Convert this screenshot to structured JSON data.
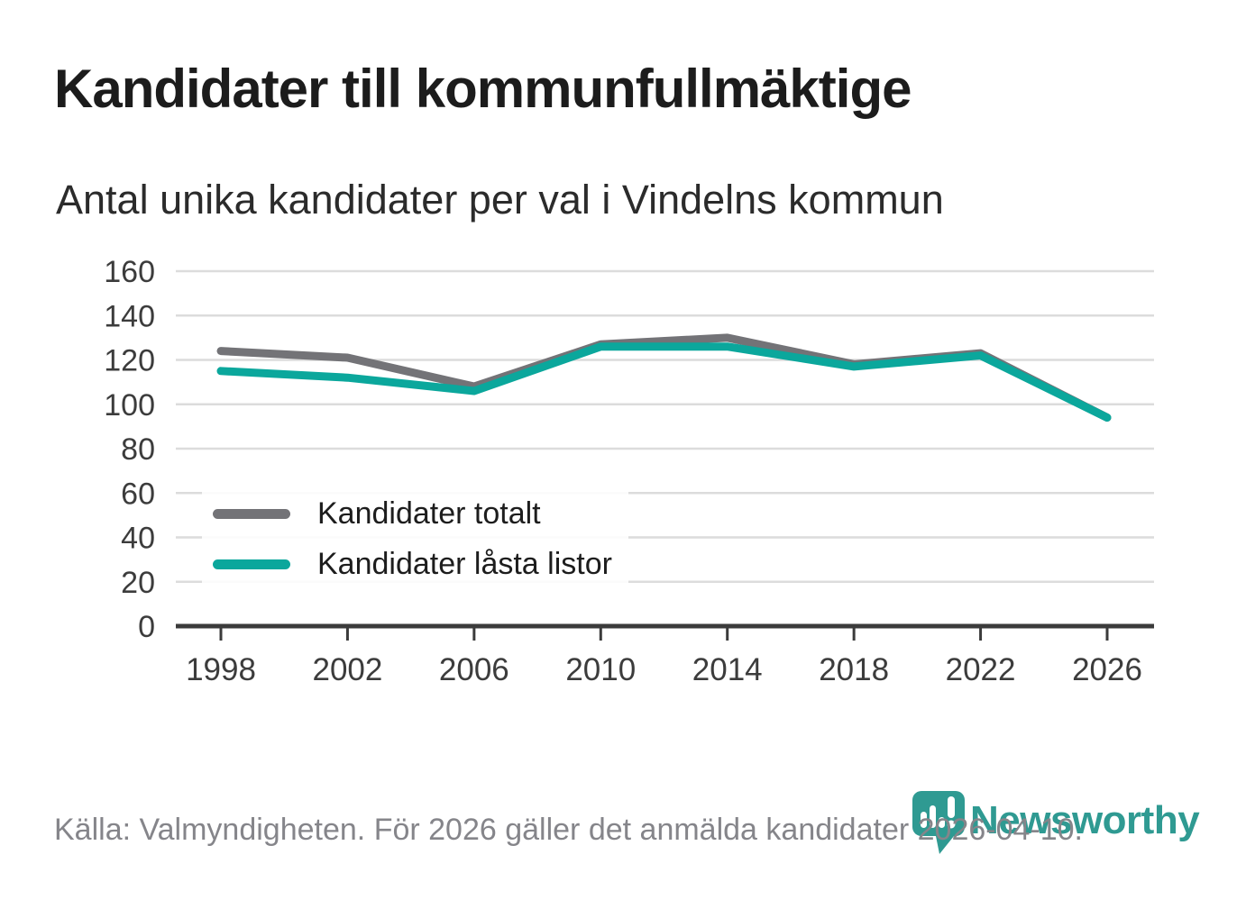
{
  "header": {
    "title": "Kandidater till kommunfullmäktige",
    "subtitle": "Antal unika kandidater per val i Vindelns kommun"
  },
  "footer": {
    "source": "Källa: Valmyndigheten. För 2026 gäller det anmälda kandidater 2026-04-10."
  },
  "branding": {
    "wordmark": "Newsworthy",
    "logo_color": "#2f9a92",
    "logo_icon": "pin-with-bar-chart-and-exclamation"
  },
  "colors": {
    "series_total": "#737377",
    "series_locked": "#0ba79c",
    "gridline": "#dcdcdc",
    "axis": "#3b3b3b",
    "axis_label": "#3c3c3c"
  },
  "chart_data": {
    "type": "line",
    "title": "Kandidater till kommunfullmäktige",
    "subtitle": "Antal unika kandidater per val i Vindelns kommun",
    "categories": [
      "1998",
      "2002",
      "2006",
      "2010",
      "2014",
      "2018",
      "2022",
      "2026"
    ],
    "series": [
      {
        "name": "Kandidater totalt",
        "color": "#737377",
        "values": [
          124,
          121,
          108,
          127,
          130,
          118,
          123,
          94
        ]
      },
      {
        "name": "Kandidater låsta listor",
        "color": "#0ba79c",
        "values": [
          115,
          112,
          106,
          126,
          126,
          117,
          122,
          94
        ]
      }
    ],
    "xlabel": "",
    "ylabel": "",
    "ylim": [
      0,
      160
    ],
    "yticks": [
      0,
      20,
      40,
      60,
      80,
      100,
      120,
      140,
      160
    ],
    "grid": "horizontal",
    "legend_position": "inside-bottom-left"
  }
}
